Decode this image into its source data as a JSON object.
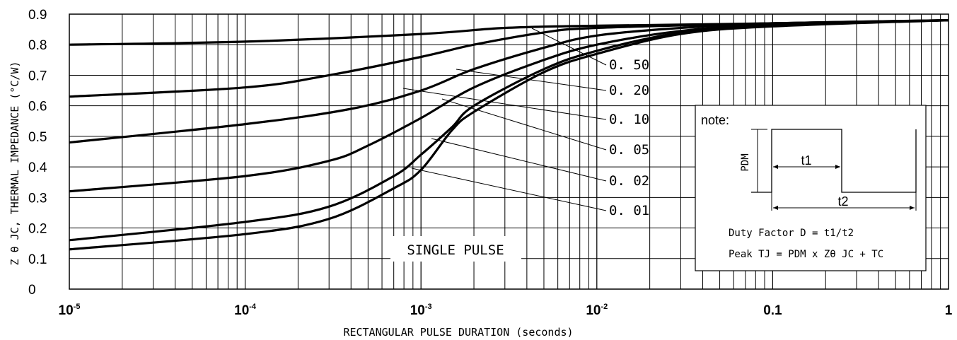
{
  "chart_data": {
    "type": "line",
    "xlabel": "RECTANGULAR PULSE DURATION (seconds)",
    "ylabel": "Z θ JC, THERMAL IMPEDANCE (°C/W)",
    "x_scale": "log",
    "xlim": [
      1e-05,
      1
    ],
    "ylim": [
      0,
      0.9
    ],
    "grid": true,
    "y_ticks": [
      "0",
      "0.1",
      "0.2",
      "0.3",
      "0.4",
      "0.5",
      "0.6",
      "0.7",
      "0.8",
      "0.9"
    ],
    "x_ticks": [
      {
        "base": "10",
        "exp": "-5"
      },
      {
        "base": "10",
        "exp": "-4"
      },
      {
        "base": "10",
        "exp": "-3"
      },
      {
        "base": "10",
        "exp": "-2"
      },
      {
        "base": "0.1",
        "exp": ""
      },
      {
        "base": "1",
        "exp": ""
      }
    ],
    "annotation": "SINGLE PULSE",
    "series": [
      {
        "name": "0.50",
        "x": [
          1e-05,
          0.0001,
          0.001,
          0.003,
          0.01,
          0.1,
          1
        ],
        "y": [
          0.8,
          0.81,
          0.835,
          0.855,
          0.862,
          0.87,
          0.88
        ]
      },
      {
        "name": "0.20",
        "x": [
          1e-05,
          0.0001,
          0.0003,
          0.001,
          0.002,
          0.005,
          0.01,
          0.1,
          1
        ],
        "y": [
          0.63,
          0.66,
          0.7,
          0.76,
          0.8,
          0.84,
          0.855,
          0.87,
          0.88
        ]
      },
      {
        "name": "0.10",
        "x": [
          1e-05,
          0.0001,
          0.0004,
          0.001,
          0.002,
          0.005,
          0.01,
          0.03,
          0.1,
          1
        ],
        "y": [
          0.48,
          0.54,
          0.59,
          0.65,
          0.72,
          0.79,
          0.83,
          0.855,
          0.87,
          0.88
        ]
      },
      {
        "name": "0.05",
        "x": [
          1e-05,
          0.0001,
          0.0003,
          0.0005,
          0.001,
          0.002,
          0.005,
          0.01,
          0.03,
          0.1,
          1
        ],
        "y": [
          0.32,
          0.37,
          0.42,
          0.47,
          0.56,
          0.66,
          0.75,
          0.8,
          0.845,
          0.865,
          0.88
        ]
      },
      {
        "name": "0.02",
        "x": [
          1e-05,
          0.0001,
          0.0003,
          0.0007,
          0.001,
          0.0015,
          0.002,
          0.005,
          0.01,
          0.03,
          0.1,
          1
        ],
        "y": [
          0.16,
          0.22,
          0.27,
          0.37,
          0.44,
          0.53,
          0.6,
          0.72,
          0.78,
          0.84,
          0.865,
          0.88
        ]
      },
      {
        "name": "0.01",
        "x": [
          1e-05,
          0.0001,
          0.0003,
          0.0007,
          0.001,
          0.0015,
          0.002,
          0.005,
          0.01,
          0.03,
          0.1,
          1
        ],
        "y": [
          0.13,
          0.18,
          0.23,
          0.33,
          0.39,
          0.52,
          0.58,
          0.71,
          0.77,
          0.835,
          0.86,
          0.88
        ]
      }
    ],
    "curve_labels": [
      "0. 50",
      "0. 20",
      "0. 10",
      "0. 05",
      "0. 02",
      "0. 01"
    ],
    "note": {
      "title": "note:",
      "pdm_label": "PDM",
      "t1_label": "t1",
      "t2_label": "t2",
      "line1": "Duty Factor D = t1/t2",
      "line2": "Peak TJ = PDM x Zθ JC + TC"
    }
  }
}
